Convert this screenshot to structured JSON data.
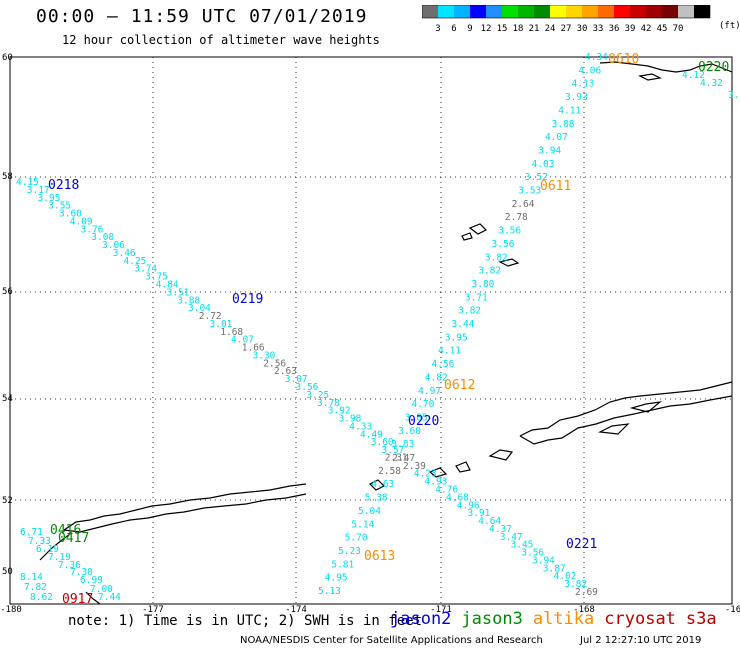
{
  "title": "00:00 – 11:59 UTC 07/01/2019",
  "subtitle": "12 hour collection of altimeter wave heights",
  "colorbar": {
    "colors": [
      "#6f6f6f",
      "#00e5ff",
      "#00b4ff",
      "#0000ff",
      "#1e90ff",
      "#00e000",
      "#00b400",
      "#008c00",
      "#ffff00",
      "#ffd700",
      "#ffa500",
      "#ff6a00",
      "#ff0000",
      "#c80000",
      "#a00000",
      "#780000",
      "#c0c0c0",
      "#000000"
    ],
    "labels": [
      "3",
      "6",
      "9",
      "12",
      "15",
      "18",
      "21",
      "24",
      "27",
      "30",
      "33",
      "36",
      "39",
      "42",
      "45",
      "70"
    ],
    "unit": "(ft)"
  },
  "axes": {
    "lat_labels": [
      "60",
      "58",
      "56",
      "54",
      "52",
      "50"
    ],
    "lon_labels": [
      "-180",
      "-177",
      "-174",
      "-171",
      "-168",
      "-16"
    ]
  },
  "colors": {
    "jason2": "#0000ee",
    "jason3": "#008c00",
    "altika": "#ff8c00",
    "cryosat": "#c00000",
    "s3a": "#c00000",
    "swh": "#00e0f0",
    "swh_low": "#6f6f6f"
  },
  "track_times": [
    {
      "text": "0218",
      "sat": "jason2"
    },
    {
      "text": "0219",
      "sat": "jason2"
    },
    {
      "text": "0220",
      "sat": "jason2"
    },
    {
      "text": "0221",
      "sat": "jason2"
    },
    {
      "text": "0220",
      "sat": "jason3"
    },
    {
      "text": "0416",
      "sat": "jason3"
    },
    {
      "text": "0417",
      "sat": "jason3"
    },
    {
      "text": "0610",
      "sat": "altika"
    },
    {
      "text": "0611",
      "sat": "altika"
    },
    {
      "text": "0612",
      "sat": "altika"
    },
    {
      "text": "0613",
      "sat": "altika"
    },
    {
      "text": "0917",
      "sat": "cryosat"
    }
  ],
  "wave_heights": [
    [
      "4.15",
      "3.17",
      "3.95",
      "3.55",
      "3.60",
      "4.09",
      "3.76",
      "3.08",
      "3.06",
      "3.46",
      "4.25",
      "3.74",
      "3.75",
      "4.84",
      "3.51",
      "3.88",
      "3.04",
      "2.72",
      "3.01",
      "1.68",
      "4.07",
      "1.66",
      "3.30",
      "2.56",
      "2.63",
      "3.07",
      "3.56",
      "3.25",
      "3.78",
      "3.92",
      "3.98",
      "4.33",
      "4.49",
      "3.60",
      "3.57",
      "2.47",
      "2.39",
      "4.23",
      "4.93",
      "4.76",
      "4.68",
      "4.96",
      "3.91",
      "4.64",
      "4.37",
      "3.47",
      "3.45",
      "3.56",
      "3.94",
      "3.87",
      "4.02",
      "3.82",
      "2.69"
    ],
    [
      "4.34",
      "4.06",
      "4.13",
      "3.93",
      "4.11",
      "3.88",
      "4.07",
      "3.94",
      "4.03",
      "3.52",
      "3.53",
      "2.64",
      "2.78",
      "3.56",
      "3.56",
      "3.82",
      "3.82",
      "3.80",
      "3.71",
      "3.82",
      "3.44",
      "3.95",
      "4.11",
      "4.56",
      "4.82",
      "4.97",
      "4.70",
      "3.85",
      "3.60",
      "3.83",
      "2.31",
      "2.58",
      "4.63",
      "5.38",
      "5.04",
      "5.14",
      "5.70",
      "5.23",
      "5.81",
      "4.95",
      "5.13"
    ],
    [
      "6.71",
      "7.33",
      "6.19",
      "7.19",
      "7.36",
      "7.30",
      "6.99",
      "7.00",
      "7.44",
      "8.14",
      "7.82",
      "8.62"
    ],
    [
      "4.12",
      "4.32",
      "3.9"
    ]
  ],
  "note": "note: 1) Time is in UTC; 2) SWH is in feet",
  "legend": [
    {
      "label": "jason2",
      "sat": "jason2"
    },
    {
      "label": "jason3",
      "sat": "jason3"
    },
    {
      "label": "altika",
      "sat": "altika"
    },
    {
      "label": "cryosat",
      "sat": "cryosat"
    },
    {
      "label": "s3a",
      "sat": "s3a"
    }
  ],
  "credit": "NOAA/NESDIS Center for Satellite Applications and Research",
  "timestamp": "Jul  2 12:27:10 UTC 2019"
}
